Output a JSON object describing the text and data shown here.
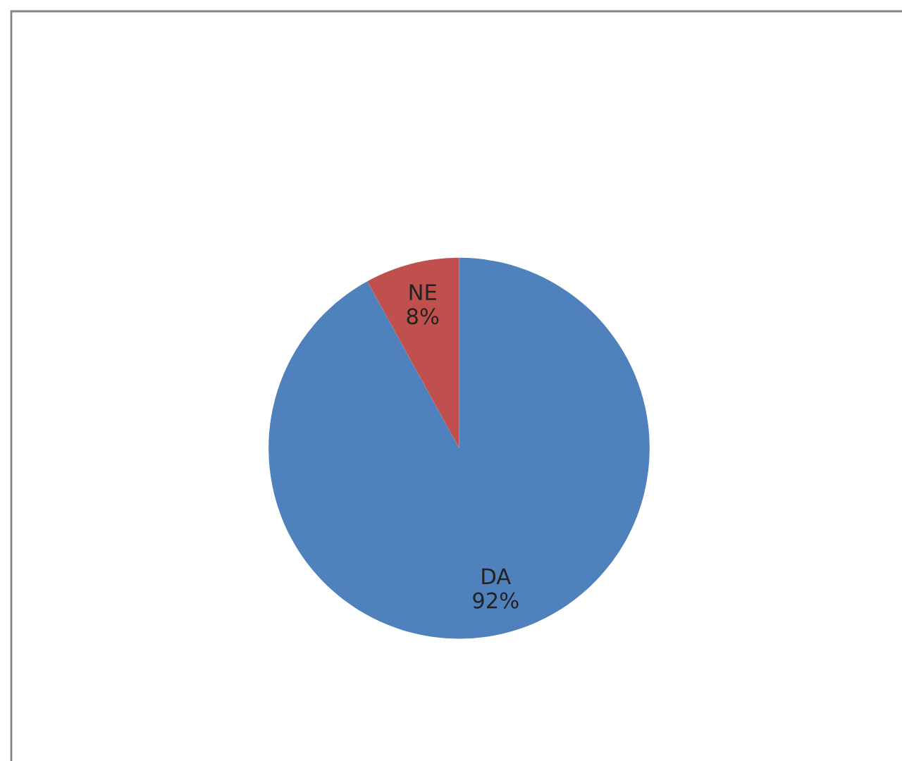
{
  "chart_data": {
    "type": "pie",
    "categories": [
      "DA",
      "NE"
    ],
    "values": [
      92,
      8
    ],
    "value_labels": [
      "92%",
      "8%"
    ],
    "colors": [
      "#4f81bd",
      "#c0504d"
    ],
    "legend": false
  }
}
